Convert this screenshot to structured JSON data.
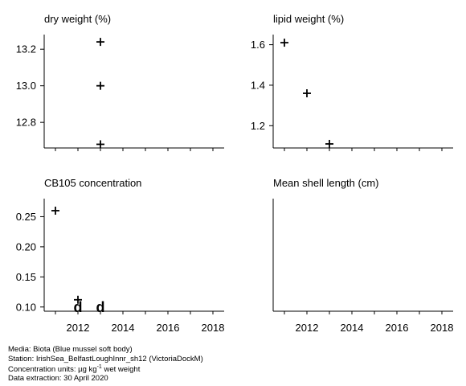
{
  "chart_data": [
    {
      "type": "scatter",
      "title": "dry weight (%)",
      "xlim": [
        2010.5,
        2018.5
      ],
      "ylim": [
        12.66,
        13.28
      ],
      "yticks": [
        "12.8",
        "13.0",
        "13.2"
      ],
      "ytick_values": [
        12.8,
        13.0,
        13.2
      ],
      "xticks": [],
      "points": [
        {
          "x": 2013,
          "y": 13.24,
          "marker": "+"
        },
        {
          "x": 2013,
          "y": 13.0,
          "marker": "+"
        },
        {
          "x": 2013,
          "y": 12.68,
          "marker": "+"
        }
      ]
    },
    {
      "type": "scatter",
      "title": "lipid weight (%)",
      "xlim": [
        2010.5,
        2018.5
      ],
      "ylim": [
        1.09,
        1.65
      ],
      "yticks": [
        "1.2",
        "1.4",
        "1.6"
      ],
      "ytick_values": [
        1.2,
        1.4,
        1.6
      ],
      "xticks": [],
      "points": [
        {
          "x": 2011,
          "y": 1.61,
          "marker": "+"
        },
        {
          "x": 2012,
          "y": 1.36,
          "marker": "+"
        },
        {
          "x": 2013,
          "y": 1.11,
          "marker": "+"
        }
      ]
    },
    {
      "type": "scatter",
      "title": "CB105 concentration",
      "xlim": [
        2010.5,
        2018.5
      ],
      "ylim": [
        0.093,
        0.28
      ],
      "yticks": [
        "0.10",
        "0.15",
        "0.20",
        "0.25"
      ],
      "ytick_values": [
        0.1,
        0.15,
        0.2,
        0.25
      ],
      "xticks": [
        "2012",
        "2014",
        "2016",
        "2018"
      ],
      "xtick_values": [
        2012,
        2014,
        2016,
        2018
      ],
      "points": [
        {
          "x": 2011,
          "y": 0.26,
          "marker": "+"
        },
        {
          "x": 2012,
          "y": 0.112,
          "marker": "+"
        },
        {
          "x": 2012,
          "y": 0.1,
          "marker": "d"
        },
        {
          "x": 2013,
          "y": 0.1,
          "marker": "d"
        }
      ]
    },
    {
      "type": "scatter",
      "title": "Mean shell length (cm)",
      "xlim": [
        2010.5,
        2018.5
      ],
      "yticks": [],
      "xticks": [
        "2012",
        "2014",
        "2016",
        "2018"
      ],
      "xtick_values": [
        2012,
        2014,
        2016,
        2018
      ],
      "points": []
    }
  ],
  "footer": {
    "media": "Media: Biota (Blue mussel soft body)",
    "station": "Station: IrishSea_BelfastLoughInnr_sh12 (VictoriaDockM)",
    "units_prefix": "Concentration units:  µg kg",
    "units_sup": "-1",
    "units_suffix": " wet weight",
    "extraction": "Data extraction: 30 April 2020"
  }
}
